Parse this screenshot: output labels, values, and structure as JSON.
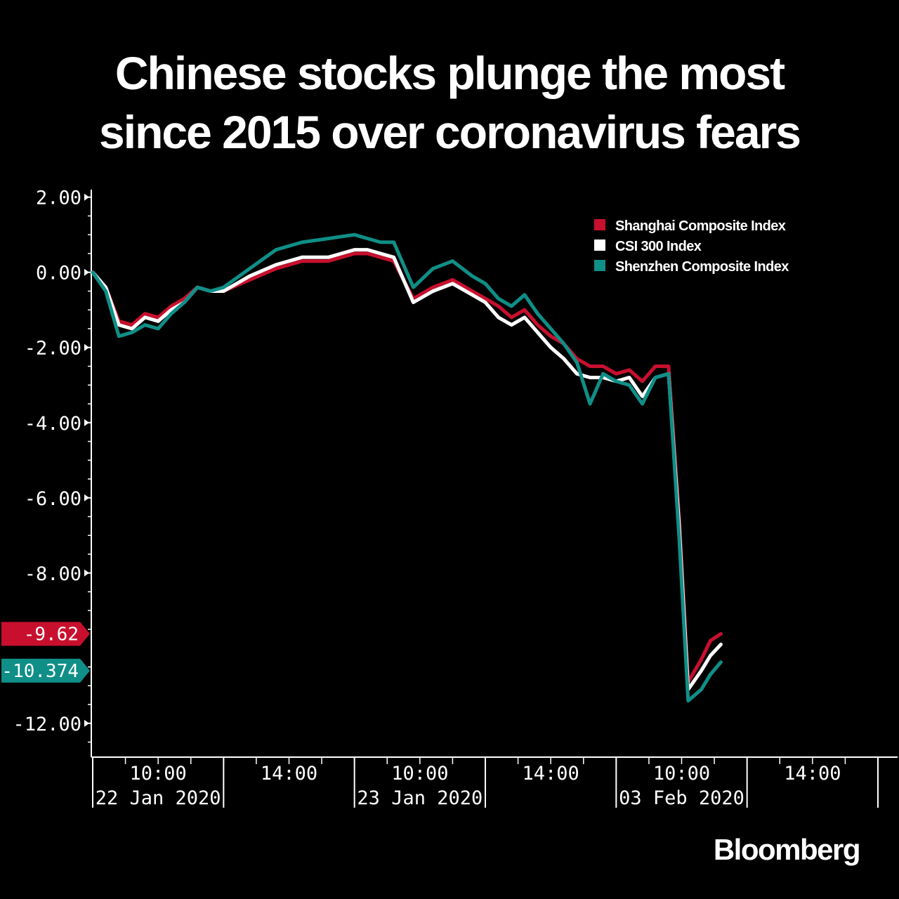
{
  "title": {
    "line1": "Chinese stocks plunge the most",
    "line2": "since 2015 over coronavirus fears"
  },
  "brand": "Bloomberg",
  "colors": {
    "background": "#000000",
    "shanghai": "#c8102e",
    "csi300": "#ffffff",
    "shenzhen": "#0f8f87"
  },
  "chart_data": {
    "type": "line",
    "ylim": [
      -12.9,
      2.2
    ],
    "yticks": [
      2,
      0,
      -2,
      -4,
      -6,
      -8,
      -12
    ],
    "ytick_labels": [
      "2.00",
      "0.00",
      "-2.00",
      "-4.00",
      "-6.00",
      "-8.00",
      "-12.00"
    ],
    "x_labels": [
      {
        "time": "10:00",
        "date": "22 Jan 2020",
        "x": 0.5
      },
      {
        "time": "14:00",
        "date": "",
        "x": 1.5
      },
      {
        "time": "10:00",
        "date": "23 Jan 2020",
        "x": 2.5
      },
      {
        "time": "14:00",
        "date": "",
        "x": 3.5
      },
      {
        "time": "10:00",
        "date": "03 Feb 2020",
        "x": 4.5
      },
      {
        "time": "14:00",
        "date": "",
        "x": 5.5
      }
    ],
    "session_boundaries": [
      0,
      1,
      2,
      3,
      4,
      5,
      6
    ],
    "xlim": [
      0,
      6
    ],
    "series": [
      {
        "name": "Shanghai Composite Index",
        "color": "#c8102e",
        "last_label": "-9.62",
        "last_value": -9.62,
        "points": [
          [
            0,
            0
          ],
          [
            0.1,
            -0.4
          ],
          [
            0.2,
            -1.3
          ],
          [
            0.3,
            -1.4
          ],
          [
            0.4,
            -1.1
          ],
          [
            0.5,
            -1.2
          ],
          [
            0.6,
            -0.9
          ],
          [
            0.7,
            -0.7
          ],
          [
            0.8,
            -0.4
          ],
          [
            0.9,
            -0.5
          ],
          [
            1.0,
            -0.5
          ],
          [
            1.2,
            -0.2
          ],
          [
            1.4,
            0.1
          ],
          [
            1.6,
            0.3
          ],
          [
            1.8,
            0.3
          ],
          [
            2.0,
            0.5
          ],
          [
            2.1,
            0.5
          ],
          [
            2.2,
            0.4
          ],
          [
            2.3,
            0.3
          ],
          [
            2.45,
            -0.7
          ],
          [
            2.6,
            -0.4
          ],
          [
            2.75,
            -0.2
          ],
          [
            2.9,
            -0.5
          ],
          [
            3.0,
            -0.7
          ],
          [
            3.1,
            -0.9
          ],
          [
            3.2,
            -1.2
          ],
          [
            3.3,
            -1.0
          ],
          [
            3.4,
            -1.4
          ],
          [
            3.5,
            -1.7
          ],
          [
            3.6,
            -1.9
          ],
          [
            3.7,
            -2.3
          ],
          [
            3.8,
            -2.5
          ],
          [
            3.9,
            -2.5
          ],
          [
            4.0,
            -2.7
          ],
          [
            4.1,
            -2.6
          ],
          [
            4.2,
            -2.9
          ],
          [
            4.3,
            -2.5
          ],
          [
            4.4,
            -2.5
          ],
          [
            4.48,
            -6.5
          ],
          [
            4.55,
            -10.9
          ],
          [
            4.65,
            -10.3
          ],
          [
            4.72,
            -9.8
          ],
          [
            4.8,
            -9.62
          ]
        ]
      },
      {
        "name": "CSI 300 Index",
        "color": "#ffffff",
        "last_value": -9.9,
        "points": [
          [
            0,
            0
          ],
          [
            0.1,
            -0.4
          ],
          [
            0.2,
            -1.4
          ],
          [
            0.3,
            -1.5
          ],
          [
            0.4,
            -1.2
          ],
          [
            0.5,
            -1.3
          ],
          [
            0.6,
            -1.0
          ],
          [
            0.7,
            -0.8
          ],
          [
            0.8,
            -0.4
          ],
          [
            0.9,
            -0.5
          ],
          [
            1.0,
            -0.5
          ],
          [
            1.2,
            -0.1
          ],
          [
            1.4,
            0.2
          ],
          [
            1.6,
            0.4
          ],
          [
            1.8,
            0.4
          ],
          [
            2.0,
            0.6
          ],
          [
            2.1,
            0.6
          ],
          [
            2.2,
            0.5
          ],
          [
            2.3,
            0.4
          ],
          [
            2.45,
            -0.8
          ],
          [
            2.6,
            -0.5
          ],
          [
            2.75,
            -0.3
          ],
          [
            2.9,
            -0.6
          ],
          [
            3.0,
            -0.8
          ],
          [
            3.1,
            -1.2
          ],
          [
            3.2,
            -1.4
          ],
          [
            3.3,
            -1.2
          ],
          [
            3.4,
            -1.6
          ],
          [
            3.5,
            -2.0
          ],
          [
            3.6,
            -2.3
          ],
          [
            3.7,
            -2.7
          ],
          [
            3.8,
            -2.8
          ],
          [
            3.9,
            -2.8
          ],
          [
            4.0,
            -2.9
          ],
          [
            4.1,
            -2.8
          ],
          [
            4.2,
            -3.3
          ],
          [
            4.3,
            -2.8
          ],
          [
            4.4,
            -2.7
          ],
          [
            4.48,
            -6.7
          ],
          [
            4.55,
            -11.1
          ],
          [
            4.65,
            -10.6
          ],
          [
            4.72,
            -10.2
          ],
          [
            4.8,
            -9.9
          ]
        ]
      },
      {
        "name": "Shenzhen Composite Index",
        "color": "#0f8f87",
        "last_label": "-10.374",
        "last_value": -10.374,
        "points": [
          [
            0,
            0
          ],
          [
            0.1,
            -0.5
          ],
          [
            0.2,
            -1.7
          ],
          [
            0.3,
            -1.6
          ],
          [
            0.4,
            -1.4
          ],
          [
            0.5,
            -1.5
          ],
          [
            0.6,
            -1.1
          ],
          [
            0.7,
            -0.8
          ],
          [
            0.8,
            -0.4
          ],
          [
            0.9,
            -0.5
          ],
          [
            1.0,
            -0.4
          ],
          [
            1.2,
            0.1
          ],
          [
            1.4,
            0.6
          ],
          [
            1.6,
            0.8
          ],
          [
            1.8,
            0.9
          ],
          [
            2.0,
            1.0
          ],
          [
            2.1,
            0.9
          ],
          [
            2.2,
            0.8
          ],
          [
            2.3,
            0.8
          ],
          [
            2.45,
            -0.4
          ],
          [
            2.6,
            0.1
          ],
          [
            2.75,
            0.3
          ],
          [
            2.9,
            -0.1
          ],
          [
            3.0,
            -0.3
          ],
          [
            3.1,
            -0.7
          ],
          [
            3.2,
            -0.9
          ],
          [
            3.3,
            -0.6
          ],
          [
            3.4,
            -1.1
          ],
          [
            3.5,
            -1.5
          ],
          [
            3.6,
            -1.9
          ],
          [
            3.7,
            -2.4
          ],
          [
            3.8,
            -3.5
          ],
          [
            3.9,
            -2.7
          ],
          [
            4.0,
            -2.9
          ],
          [
            4.1,
            -3.0
          ],
          [
            4.2,
            -3.5
          ],
          [
            4.3,
            -2.8
          ],
          [
            4.4,
            -2.7
          ],
          [
            4.48,
            -7.0
          ],
          [
            4.55,
            -11.4
          ],
          [
            4.65,
            -11.1
          ],
          [
            4.72,
            -10.7
          ],
          [
            4.8,
            -10.374
          ]
        ]
      }
    ]
  }
}
